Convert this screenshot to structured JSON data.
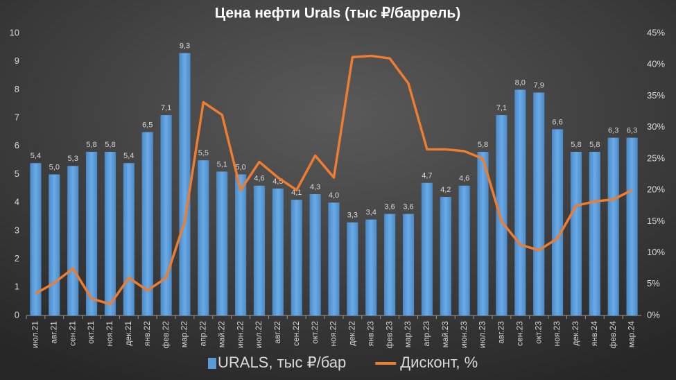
{
  "chart_data": {
    "type": "bar_line",
    "title": "Цена нефти Urals (тыс ₽/баррель)",
    "categories": [
      "июл.21",
      "авг.21",
      "сен.21",
      "окт.21",
      "ноя.21",
      "дек.21",
      "янв.22",
      "фев.22",
      "мар.22",
      "апр.22",
      "май.22",
      "июн.22",
      "июл.22",
      "авг.22",
      "сен.22",
      "окт.22",
      "ноя.22",
      "дек.22",
      "янв.23",
      "фев.23",
      "мар.23",
      "апр.23",
      "май.23",
      "июн.23",
      "июл.23",
      "авг.23",
      "сен.23",
      "окт.23",
      "ноя.23",
      "дек.23",
      "янв.24",
      "фев.24",
      "мар.24"
    ],
    "series": [
      {
        "name": "URALS, тыс ₽/бар",
        "color": "#5b9bd5",
        "type": "bar",
        "values": [
          5.4,
          5.0,
          5.3,
          5.8,
          5.8,
          5.4,
          6.5,
          7.1,
          9.3,
          5.5,
          5.1,
          5.0,
          4.6,
          4.5,
          4.1,
          4.3,
          4.0,
          3.3,
          3.4,
          3.6,
          3.6,
          4.7,
          4.2,
          4.6,
          5.8,
          7.1,
          8.0,
          7.9,
          6.6,
          5.8,
          5.8,
          6.3,
          6.3
        ],
        "value_labels": [
          "5,4",
          "5,0",
          "5,3",
          "5,8",
          "5,8",
          "5,4",
          "6,5",
          "7,1",
          "9,3",
          "5,5",
          "5,1",
          "5,0",
          "4,6",
          "4,5",
          "4,1",
          "4,3",
          "4,0",
          "3,3",
          "3,4",
          "3,6",
          "3,6",
          "4,7",
          "4,2",
          "4,6",
          "5,8",
          "7,1",
          "8,0",
          "7,9",
          "6,6",
          "5,8",
          "5,8",
          "6,3",
          "6,3"
        ]
      },
      {
        "name": "Дисконт, %",
        "color": "#ed7d31",
        "type": "line",
        "axis": "y2",
        "values": [
          3.5,
          5.2,
          7.5,
          2.7,
          1.8,
          6,
          4,
          6,
          15,
          34,
          32,
          20,
          24.5,
          22,
          20,
          25.5,
          22,
          41.2,
          41.4,
          41,
          37,
          26.5,
          26.5,
          26.2,
          25,
          15,
          11.3,
          10.4,
          12.3,
          17.5,
          18.2,
          18.5,
          20
        ]
      }
    ],
    "ylim": [
      0,
      10
    ],
    "yticks": [
      0,
      1,
      2,
      3,
      4,
      5,
      6,
      7,
      8,
      9,
      10
    ],
    "y2lim": [
      0,
      45
    ],
    "y2ticks": [
      {
        "value": 0,
        "label": "0%"
      },
      {
        "value": 5,
        "label": "5%"
      },
      {
        "value": 10,
        "label": "10%"
      },
      {
        "value": 15,
        "label": "15%"
      },
      {
        "value": 20,
        "label": "20%"
      },
      {
        "value": 25,
        "label": "25%"
      },
      {
        "value": 30,
        "label": "30%"
      },
      {
        "value": 35,
        "label": "35%"
      },
      {
        "value": 40,
        "label": "40%"
      },
      {
        "value": 45,
        "label": "45%"
      }
    ],
    "legend": "bottom"
  }
}
